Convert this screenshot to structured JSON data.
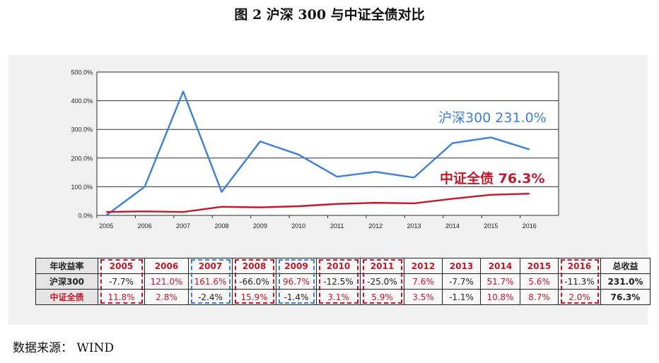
{
  "title": "图 2    沪深 300 与中证全债对比",
  "source": "数据来源：  WIND",
  "colors": {
    "hs300": "#3f7fd6",
    "bond": "#c0192b"
  },
  "chart_data": {
    "type": "line",
    "x": [
      "2005",
      "2006",
      "2007",
      "2008",
      "2009",
      "2010",
      "2011",
      "2012",
      "2013",
      "2014",
      "2015",
      "2016"
    ],
    "ylim": [
      0,
      500
    ],
    "yticks": [
      "0.0%",
      "100.0%",
      "200.0%",
      "300.0%",
      "400.0%",
      "500.0%"
    ],
    "series": [
      {
        "name": "沪深300",
        "values": [
          0,
          100,
          432,
          82,
          258,
          212,
          135,
          152,
          132,
          252,
          272,
          230
        ]
      },
      {
        "name": "中证全债",
        "values": [
          12,
          14,
          12,
          30,
          28,
          32,
          40,
          44,
          42,
          58,
          72,
          76
        ]
      }
    ],
    "annotations": [
      {
        "label": "沪深300  231.0%",
        "series": 0
      },
      {
        "label": "中证全债  76.3%",
        "series": 1
      }
    ]
  },
  "table": {
    "header": [
      "年收益率",
      "2005",
      "2006",
      "2007",
      "2008",
      "2009",
      "2010",
      "2011",
      "2012",
      "2013",
      "2014",
      "2015",
      "2016",
      "总收益"
    ],
    "rows": [
      {
        "label": "沪深300",
        "values": [
          "-7.7%",
          "121.0%",
          "161.6%",
          "-66.0%",
          "96.7%",
          "-12.5%",
          "-25.0%",
          "7.6%",
          "-7.7%",
          "51.7%",
          "5.6%",
          "-11.3%"
        ],
        "total": "231.0%"
      },
      {
        "label": "中证全债",
        "values": [
          "11.8%",
          "2.8%",
          "-2.4%",
          "15.9%",
          "-1.4%",
          "3.1%",
          "5.9%",
          "3.5%",
          "-1.1%",
          "10.8%",
          "8.7%",
          "2.0%"
        ],
        "total": "76.3%"
      }
    ]
  }
}
